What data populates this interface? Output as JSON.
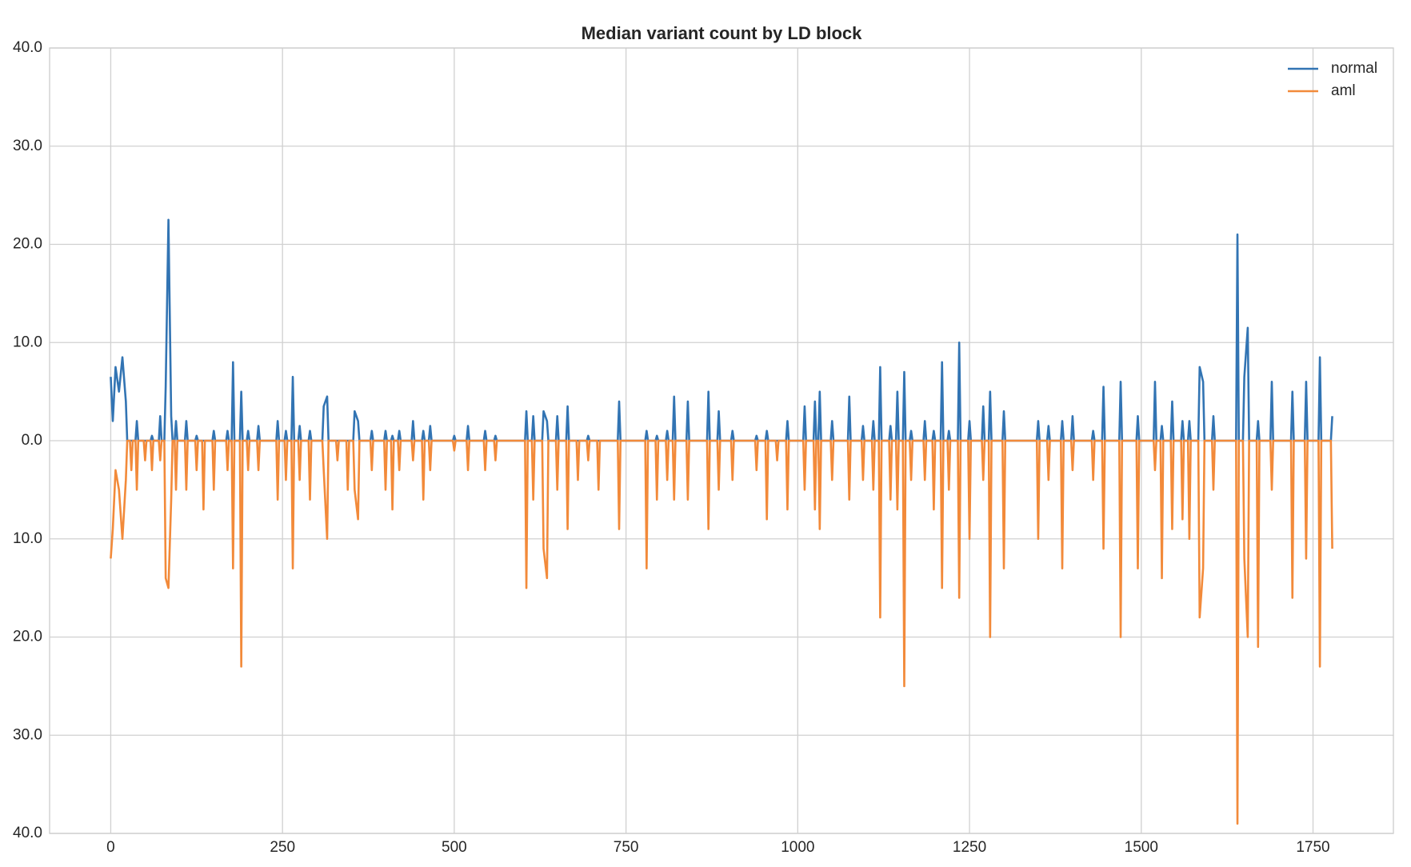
{
  "chart_data": {
    "type": "line",
    "title": "Median variant count by LD block",
    "x": [
      0,
      3,
      7,
      12,
      17,
      22,
      24,
      28,
      30,
      32,
      36,
      38,
      40,
      48,
      50,
      52,
      58,
      60,
      62,
      70,
      72,
      74,
      78,
      80,
      84,
      88,
      90,
      93,
      95,
      97,
      108,
      110,
      112,
      123,
      125,
      127,
      133,
      135,
      137,
      148,
      150,
      152,
      168,
      170,
      172,
      176,
      178,
      180,
      188,
      190,
      192,
      198,
      200,
      202,
      213,
      215,
      217,
      241,
      243,
      245,
      253,
      255,
      257,
      263,
      265,
      267,
      273,
      275,
      277,
      288,
      290,
      292,
      308,
      310,
      315,
      317,
      328,
      330,
      332,
      343,
      345,
      347,
      353,
      355,
      360,
      362,
      378,
      380,
      382,
      398,
      400,
      402,
      408,
      410,
      412,
      418,
      420,
      422,
      438,
      440,
      442,
      453,
      455,
      457,
      463,
      465,
      467,
      498,
      500,
      502,
      518,
      520,
      522,
      543,
      545,
      547,
      558,
      560,
      562,
      603,
      605,
      607,
      613,
      615,
      617,
      628,
      630,
      635,
      637,
      648,
      650,
      652,
      663,
      665,
      667,
      678,
      680,
      682,
      693,
      695,
      697,
      708,
      710,
      712,
      738,
      740,
      742,
      778,
      780,
      782,
      793,
      795,
      797,
      808,
      810,
      812,
      818,
      820,
      822,
      838,
      840,
      842,
      868,
      870,
      872,
      883,
      885,
      887,
      903,
      905,
      907,
      938,
      940,
      942,
      953,
      955,
      957,
      968,
      970,
      972,
      983,
      985,
      987,
      1008,
      1010,
      1012,
      1023,
      1025,
      1027,
      1030,
      1032,
      1034,
      1048,
      1050,
      1052,
      1073,
      1075,
      1077,
      1093,
      1095,
      1097,
      1108,
      1110,
      1112,
      1118,
      1120,
      1122,
      1133,
      1135,
      1137,
      1143,
      1145,
      1147,
      1153,
      1155,
      1157,
      1163,
      1165,
      1167,
      1183,
      1185,
      1187,
      1196,
      1198,
      1200,
      1208,
      1210,
      1212,
      1218,
      1220,
      1222,
      1233,
      1235,
      1237,
      1248,
      1250,
      1252,
      1268,
      1270,
      1272,
      1278,
      1280,
      1282,
      1298,
      1300,
      1302,
      1348,
      1350,
      1352,
      1363,
      1365,
      1367,
      1383,
      1385,
      1387,
      1398,
      1400,
      1402,
      1428,
      1430,
      1432,
      1443,
      1445,
      1447,
      1468,
      1470,
      1472,
      1493,
      1495,
      1497,
      1518,
      1520,
      1522,
      1528,
      1530,
      1532,
      1543,
      1545,
      1547,
      1558,
      1560,
      1562,
      1568,
      1570,
      1572,
      1583,
      1585,
      1590,
      1592,
      1603,
      1605,
      1607,
      1638,
      1640,
      1642,
      1648,
      1650,
      1655,
      1657,
      1668,
      1670,
      1672,
      1688,
      1690,
      1692,
      1718,
      1720,
      1722,
      1738,
      1740,
      1742,
      1758,
      1760,
      1762,
      1776,
      1778
    ],
    "series": [
      {
        "name": "normal",
        "color": "#3274b3",
        "values": [
          6.5,
          2,
          7.5,
          5,
          8.5,
          4,
          0,
          0,
          0,
          0,
          0,
          2,
          0,
          0,
          0,
          0,
          0,
          0.5,
          0,
          0,
          2.5,
          0,
          0,
          5.5,
          22.5,
          2.5,
          0,
          0,
          2,
          0,
          0,
          2,
          0,
          0,
          0.5,
          0,
          0,
          0,
          0,
          0,
          1,
          0,
          0,
          1,
          0,
          0,
          8,
          0,
          0,
          5,
          0,
          0,
          1,
          0,
          0,
          1.5,
          0,
          0,
          2,
          0,
          0,
          1,
          0,
          0,
          6.5,
          0,
          0,
          1.5,
          0,
          0,
          1,
          0,
          0,
          3.5,
          4.5,
          0,
          0,
          0,
          0,
          0,
          0,
          0,
          0,
          3,
          2,
          0,
          0,
          1,
          0,
          0,
          1,
          0,
          0,
          0.5,
          0,
          0,
          1,
          0,
          0,
          2,
          0,
          0,
          1,
          0,
          0,
          1.5,
          0,
          0,
          0.5,
          0,
          0,
          1.5,
          0,
          0,
          1,
          0,
          0,
          0.5,
          0,
          0,
          3,
          0,
          0,
          2.5,
          0,
          0,
          3,
          2,
          0,
          0,
          2.5,
          0,
          0,
          3.5,
          0,
          0,
          0,
          0,
          0,
          0.5,
          0,
          0,
          0,
          0,
          0,
          4,
          0,
          0,
          1,
          0,
          0,
          0.5,
          0,
          0,
          1,
          0,
          0,
          4.5,
          0,
          0,
          4,
          0,
          0,
          5,
          0,
          0,
          3,
          0,
          0,
          1,
          0,
          0,
          0.5,
          0,
          0,
          1,
          0,
          0,
          0,
          0,
          0,
          2,
          0,
          0,
          3.5,
          0,
          0,
          4,
          0,
          0,
          5,
          0,
          0,
          2,
          0,
          0,
          4.5,
          0,
          0,
          1.5,
          0,
          0,
          2,
          0,
          0,
          7.5,
          0,
          0,
          1.5,
          0,
          0,
          5,
          0,
          0,
          7,
          0,
          0,
          1,
          0,
          0,
          2,
          0,
          0,
          1,
          0,
          0,
          8,
          0,
          0,
          1,
          0,
          0,
          10,
          0,
          0,
          2,
          0,
          0,
          3.5,
          0,
          0,
          5,
          0,
          0,
          3,
          0,
          0,
          2,
          0,
          0,
          1.5,
          0,
          0,
          2,
          0,
          0,
          2.5,
          0,
          0,
          1,
          0,
          0,
          5.5,
          0,
          0,
          6,
          0,
          0,
          2.5,
          0,
          0,
          6,
          0,
          0,
          1.5,
          0,
          0,
          4,
          0,
          0,
          2,
          0,
          0,
          2,
          0,
          0,
          7.5,
          6,
          0,
          0,
          2.5,
          0,
          0,
          21,
          0,
          0,
          6.5,
          11.5,
          0,
          0,
          2,
          0,
          0,
          6,
          0,
          0,
          5,
          0,
          0,
          6,
          0,
          0,
          8.5,
          0,
          0,
          2.5
        ]
      },
      {
        "name": "aml",
        "color": "#f28a3a",
        "values": [
          -12,
          -9,
          -3,
          -5,
          -10,
          -4,
          0,
          0,
          -3,
          0,
          0,
          -5,
          0,
          0,
          -2,
          0,
          0,
          -3,
          0,
          0,
          -2,
          0,
          0,
          -14,
          -15,
          -6,
          0,
          0,
          -5,
          0,
          0,
          -5,
          0,
          0,
          -3,
          0,
          0,
          -7,
          0,
          0,
          -5,
          0,
          0,
          -3,
          0,
          0,
          -13,
          0,
          0,
          -23,
          0,
          0,
          -3,
          0,
          0,
          -3,
          0,
          0,
          -6,
          0,
          0,
          -4,
          0,
          0,
          -13,
          0,
          0,
          -4,
          0,
          0,
          -6,
          0,
          0,
          -3,
          -10,
          0,
          0,
          -2,
          0,
          0,
          -5,
          0,
          0,
          -5,
          -8,
          0,
          0,
          -3,
          0,
          0,
          -5,
          0,
          0,
          -7,
          0,
          0,
          -3,
          0,
          0,
          -2,
          0,
          0,
          -6,
          0,
          0,
          -3,
          0,
          0,
          -1,
          0,
          0,
          -3,
          0,
          0,
          -3,
          0,
          0,
          -2,
          0,
          0,
          -15,
          0,
          0,
          -6,
          0,
          0,
          -11,
          -14,
          0,
          0,
          -5,
          0,
          0,
          -9,
          0,
          0,
          -4,
          0,
          0,
          -2,
          0,
          0,
          -5,
          0,
          0,
          -9,
          0,
          0,
          -13,
          0,
          0,
          -6,
          0,
          0,
          -4,
          0,
          0,
          -6,
          0,
          0,
          -6,
          0,
          0,
          -9,
          0,
          0,
          -5,
          0,
          0,
          -4,
          0,
          0,
          -3,
          0,
          0,
          -8,
          0,
          0,
          -2,
          0,
          0,
          -7,
          0,
          0,
          -5,
          0,
          0,
          -7,
          0,
          0,
          -9,
          0,
          0,
          -4,
          0,
          0,
          -6,
          0,
          0,
          -4,
          0,
          0,
          -5,
          0,
          0,
          -18,
          0,
          0,
          -6,
          0,
          0,
          -7,
          0,
          0,
          -25,
          0,
          0,
          -4,
          0,
          0,
          -4,
          0,
          0,
          -7,
          0,
          0,
          -15,
          0,
          0,
          -5,
          0,
          0,
          -16,
          0,
          0,
          -10,
          0,
          0,
          -4,
          0,
          0,
          -20,
          0,
          0,
          -13,
          0,
          0,
          -10,
          0,
          0,
          -4,
          0,
          0,
          -13,
          0,
          0,
          -3,
          0,
          0,
          -4,
          0,
          0,
          -11,
          0,
          0,
          -20,
          0,
          0,
          -13,
          0,
          0,
          -3,
          0,
          0,
          -14,
          0,
          0,
          -9,
          0,
          0,
          -8,
          0,
          0,
          -10,
          0,
          0,
          -18,
          -13,
          0,
          0,
          -5,
          0,
          0,
          -39,
          0,
          0,
          -12,
          -20,
          0,
          0,
          -21,
          0,
          0,
          -5,
          0,
          0,
          -16,
          0,
          0,
          -12,
          0,
          0,
          -23,
          0,
          0,
          -11
        ]
      }
    ],
    "xlim": [
      -89,
      1867
    ],
    "xticks": [
      0,
      250,
      500,
      750,
      1000,
      1250,
      1500,
      1750
    ],
    "ylim": [
      -40,
      40
    ],
    "yticks": [
      {
        "value": -40,
        "label": "40.0"
      },
      {
        "value": -30,
        "label": "30.0"
      },
      {
        "value": -20,
        "label": "20.0"
      },
      {
        "value": -10,
        "label": "10.0"
      },
      {
        "value": 0,
        "label": "0.0"
      },
      {
        "value": 10,
        "label": "10.0"
      },
      {
        "value": 20,
        "label": "20.0"
      },
      {
        "value": 30,
        "label": "30.0"
      },
      {
        "value": 40,
        "label": "40.0"
      }
    ],
    "grid": true,
    "legend": "upper right"
  }
}
